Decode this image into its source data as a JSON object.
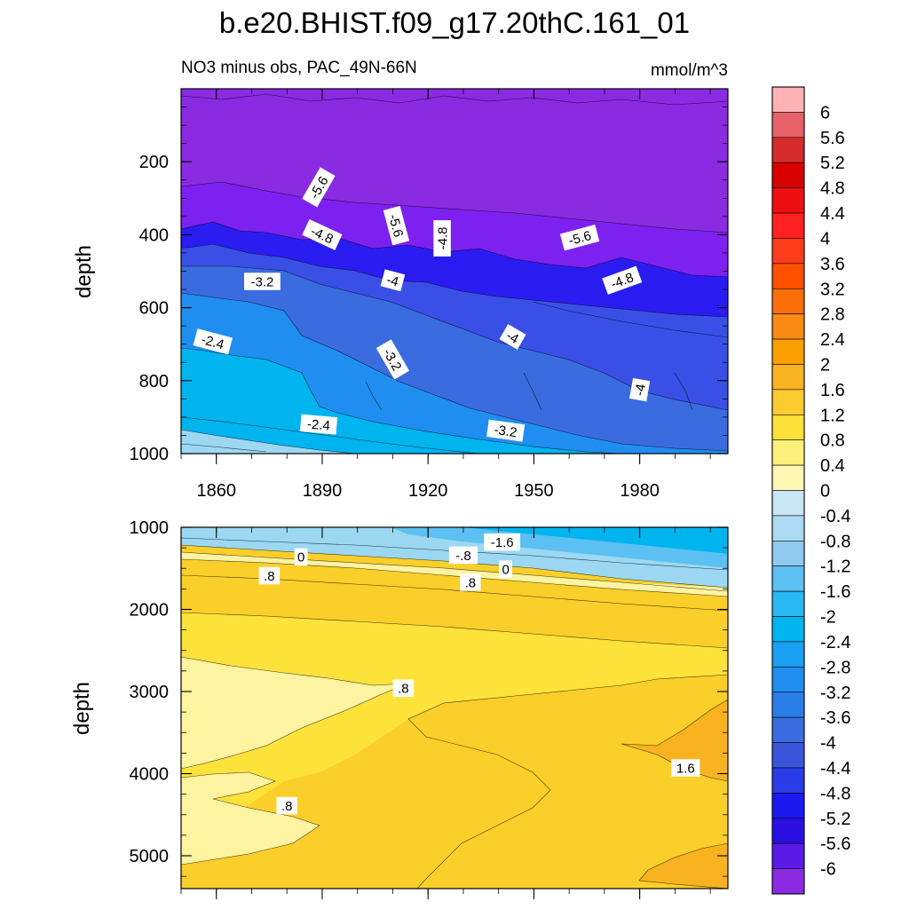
{
  "title": "b.e20.BHIST.f09_g17.20thC.161_01",
  "subtitle_left": "NO3 minus obs, PAC_49N-66N",
  "subtitle_right": "mmol/m^3",
  "colors": {
    "purple": "#8a2be2",
    "violet": "#7c21f0",
    "blue_deep": "#2a1cf0",
    "blue": "#3a4fe6",
    "blue_mid": "#3a6ce0",
    "azure": "#1f8ef0",
    "cyan": "#00b4f0",
    "cyan_light": "#9cd8f2",
    "yellow_pale": "#fdf3a0",
    "yellow": "#fde23a",
    "gold": "#fbcf2a",
    "orange": "#f9b320"
  },
  "chart_data": [
    {
      "type": "contour",
      "panel": "upper",
      "xlabel": "",
      "ylabel": "depth",
      "xlim": [
        1850,
        2005
      ],
      "ylim": [
        1000,
        0
      ],
      "xticks": [
        "1860",
        "1890",
        "1920",
        "1950",
        "1980"
      ],
      "yticks": [
        "200",
        "400",
        "600",
        "800",
        "1000"
      ],
      "contour_labels": [
        {
          "text": "-5.6",
          "x": 1889,
          "y": 270,
          "angle": 60
        },
        {
          "text": "-4.8",
          "x": 1890,
          "y": 400,
          "angle": -25
        },
        {
          "text": "-5.6",
          "x": 1911,
          "y": 375,
          "angle": -75
        },
        {
          "text": "-4.8",
          "x": 1924,
          "y": 410,
          "angle": 90
        },
        {
          "text": "-5.6",
          "x": 1963,
          "y": 408,
          "angle": 15
        },
        {
          "text": "-4.8",
          "x": 1975,
          "y": 525,
          "angle": 20
        },
        {
          "text": "-3.2",
          "x": 1873,
          "y": 528,
          "angle": 0
        },
        {
          "text": "-4",
          "x": 1910,
          "y": 525,
          "angle": -15
        },
        {
          "text": "-2.4",
          "x": 1859,
          "y": 693,
          "angle": -15
        },
        {
          "text": "-3.2",
          "x": 1910,
          "y": 742,
          "angle": -60
        },
        {
          "text": "-4",
          "x": 1944,
          "y": 680,
          "angle": -30
        },
        {
          "text": "-4",
          "x": 1980,
          "y": 825,
          "angle": 80
        },
        {
          "text": "-2.4",
          "x": 1889,
          "y": 920,
          "angle": -5
        },
        {
          "text": "-3.2",
          "x": 1942,
          "y": 937,
          "angle": -8
        }
      ]
    },
    {
      "type": "contour",
      "panel": "lower",
      "xlabel": "",
      "ylabel": "depth",
      "xlim": [
        1850,
        2005
      ],
      "ylim": [
        5400,
        1000
      ],
      "yticks": [
        "1000",
        "2000",
        "3000",
        "4000",
        "5000"
      ],
      "contour_labels": [
        {
          "text": "0",
          "x": 1884,
          "y": 1360,
          "angle": 0
        },
        {
          "text": ".8",
          "x": 1875,
          "y": 1590,
          "angle": 0
        },
        {
          "text": "-.8",
          "x": 1930,
          "y": 1340,
          "angle": 0
        },
        {
          "text": "-1.6",
          "x": 1941,
          "y": 1180,
          "angle": 0
        },
        {
          "text": "0",
          "x": 1942,
          "y": 1510,
          "angle": 0
        },
        {
          "text": ".8",
          "x": 1932,
          "y": 1670,
          "angle": 0
        },
        {
          "text": ".8",
          "x": 1913,
          "y": 2960,
          "angle": 0
        },
        {
          "text": "1.6",
          "x": 1993,
          "y": 3930,
          "angle": 0
        },
        {
          "text": ".8",
          "x": 1880,
          "y": 4390,
          "angle": 0
        }
      ]
    }
  ],
  "colorbar": {
    "label_values": [
      "6",
      "5.6",
      "5.2",
      "4.8",
      "4.4",
      "4",
      "3.6",
      "3.2",
      "2.8",
      "2.4",
      "2",
      "1.6",
      "1.2",
      "0.8",
      "0.4",
      "0",
      "-0.4",
      "-0.8",
      "-1.2",
      "-1.6",
      "-2",
      "-2.4",
      "-2.8",
      "-3.2",
      "-3.6",
      "-4",
      "-4.4",
      "-4.8",
      "-5.2",
      "-5.6",
      "-6"
    ],
    "box_colors": [
      "#ffb3b5",
      "#e66168",
      "#d42c2c",
      "#d90000",
      "#ee1010",
      "#ff2020",
      "#ff3c1a",
      "#ff5000",
      "#fb6e0a",
      "#f98a14",
      "#fba000",
      "#f9b320",
      "#fdcc30",
      "#fde23a",
      "#fef07a",
      "#fff8b4",
      "#c9e6f5",
      "#acdaf2",
      "#8ecbef",
      "#5cc0f2",
      "#2ab8f2",
      "#00b4f0",
      "#1aa0f2",
      "#1f8ef0",
      "#2a7ee8",
      "#3a6ce0",
      "#3a55dc",
      "#2a3ce8",
      "#1a1af0",
      "#2a10e0",
      "#5a1ae6",
      "#8a2be2"
    ]
  }
}
